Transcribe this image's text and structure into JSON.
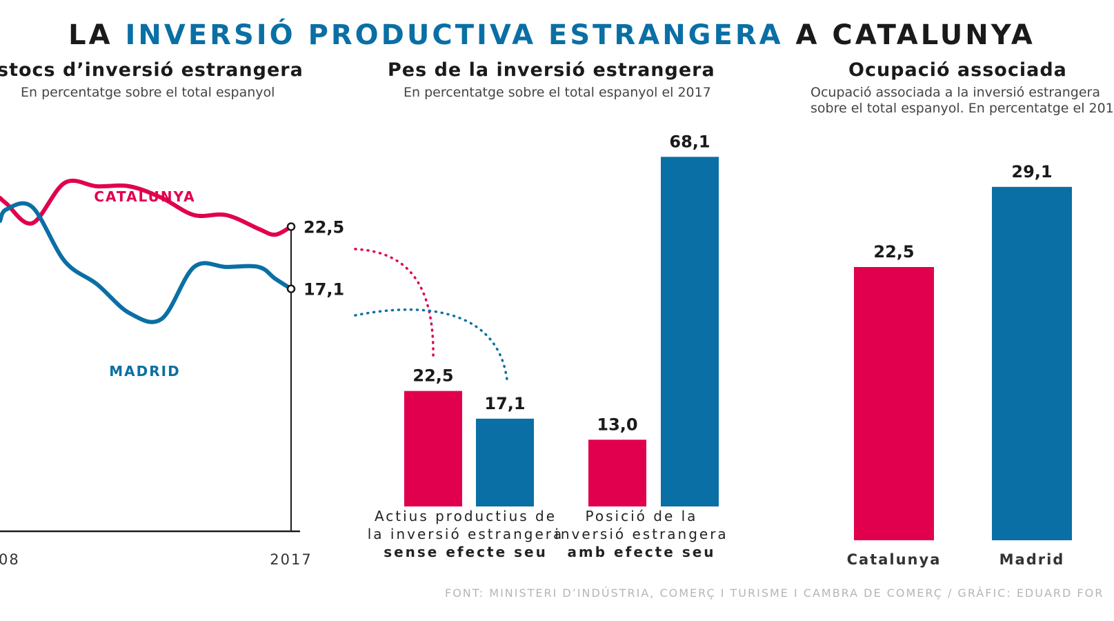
{
  "title": {
    "part1": "LA ",
    "highlight": "INVERSIÓ PRODUCTIVA ESTRANGERA",
    "part2": " A CATALUNYA"
  },
  "colors": {
    "catalunya": "#e0004d",
    "madrid": "#0a6fa4",
    "axis": "#1a1a1a"
  },
  "sections": {
    "stocks": {
      "title": "stocs d’inversió estrangera",
      "subtitle": "En percentatge sobre el total espanyol"
    },
    "pes": {
      "title": "Pes de la inversió estrangera",
      "subtitle": "En percentatge sobre el total espanyol el 2017"
    },
    "ocupacio": {
      "title": "Ocupació associada",
      "subtitle_line1": "Ocupació associada a la inversió estrangera",
      "subtitle_line2": "sobre el total espanyol. En percentatge el 201"
    }
  },
  "bar_labels": {
    "group1_line1": "Actius productius de",
    "group1_line2": "la inversió estrangera",
    "group1_line3": "sense efecte seu",
    "group2_line1": "Posició de la",
    "group2_line2": "inversió estrangera",
    "group2_line3": "amb efecte seu"
  },
  "source": "FONT: MINISTERI D’INDÚSTRIA, COMERÇ I TURISME I CAMBRA DE COMERÇ / GRÀFIC: EDUARD FOR",
  "chart_data": [
    {
      "type": "line",
      "title": "stocs d’inversió estrangera",
      "x_ticks": [
        "08",
        "2017"
      ],
      "x": [
        2008.0,
        2008.2,
        2009.0,
        2010.0,
        2011.0,
        2012.0,
        2013.0,
        2014.0,
        2015.0,
        2016.0,
        2016.5,
        2017.0
      ],
      "series": [
        {
          "name": "CATALUNYA",
          "values": [
            25.0,
            24.5,
            22.8,
            26.3,
            26.0,
            26.0,
            25.0,
            23.5,
            23.5,
            22.3,
            21.8,
            22.5
          ]
        },
        {
          "name": "MADRID",
          "values": [
            23.0,
            24.0,
            24.2,
            19.5,
            17.5,
            15.0,
            14.5,
            19.0,
            19.0,
            19.0,
            18.0,
            17.1
          ]
        }
      ],
      "end_labels": [
        "22,5",
        "17,1"
      ],
      "ylim": [
        0,
        35
      ]
    },
    {
      "type": "bar",
      "title": "Pes de la inversió estrangera",
      "categories": [
        "sense efecte seu",
        "amb efecte seu"
      ],
      "series": [
        {
          "name": "Catalunya",
          "values": [
            22.5,
            13.0
          ],
          "labels": [
            "22,5",
            "13,0"
          ]
        },
        {
          "name": "Madrid",
          "values": [
            17.1,
            68.1
          ],
          "labels": [
            "17,1",
            "68,1"
          ]
        }
      ]
    },
    {
      "type": "bar",
      "title": "Ocupació associada",
      "categories": [
        "Catalunya",
        "Madrid"
      ],
      "values": [
        22.5,
        29.1
      ],
      "labels": [
        "22,5",
        "29,1"
      ]
    }
  ]
}
